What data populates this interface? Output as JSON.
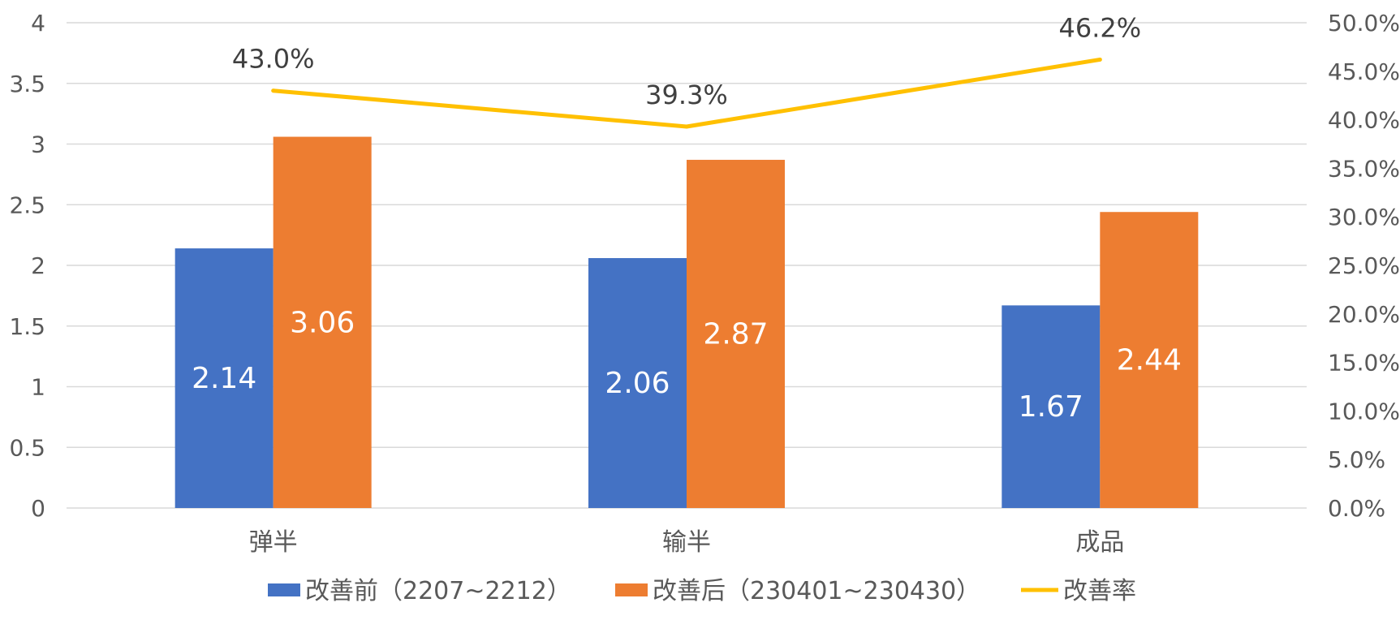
{
  "chart_data": {
    "type": "bar",
    "categories": [
      "弹半",
      "输半",
      "成品"
    ],
    "series": [
      {
        "name": "改善前（2207~2212）",
        "type": "bar",
        "axis": "left",
        "color": "#4472C4",
        "values": [
          2.14,
          2.06,
          1.67
        ],
        "labels": [
          "2.14",
          "2.06",
          "1.67"
        ]
      },
      {
        "name": "改善后（230401~230430）",
        "type": "bar",
        "axis": "left",
        "color": "#ED7D31",
        "values": [
          3.06,
          2.87,
          2.44
        ],
        "labels": [
          "3.06",
          "2.87",
          "2.44"
        ]
      },
      {
        "name": "改善率",
        "type": "line",
        "axis": "right",
        "color": "#FFC000",
        "values": [
          43.0,
          39.3,
          46.2
        ],
        "labels": [
          "43.0%",
          "39.3%",
          "46.2%"
        ]
      }
    ],
    "y_left": {
      "ylim": [
        0,
        4
      ],
      "ticks": [
        "0",
        "0.5",
        "1",
        "1.5",
        "2",
        "2.5",
        "3",
        "3.5",
        "4"
      ]
    },
    "y_right": {
      "ylim": [
        0,
        50
      ],
      "ticks": [
        "0.0%",
        "5.0%",
        "10.0%",
        "15.0%",
        "20.0%",
        "25.0%",
        "30.0%",
        "35.0%",
        "40.0%",
        "45.0%",
        "50.0%"
      ]
    },
    "grid": true,
    "legend": "bottom",
    "title": "",
    "xlabel": "",
    "ylabel": ""
  }
}
